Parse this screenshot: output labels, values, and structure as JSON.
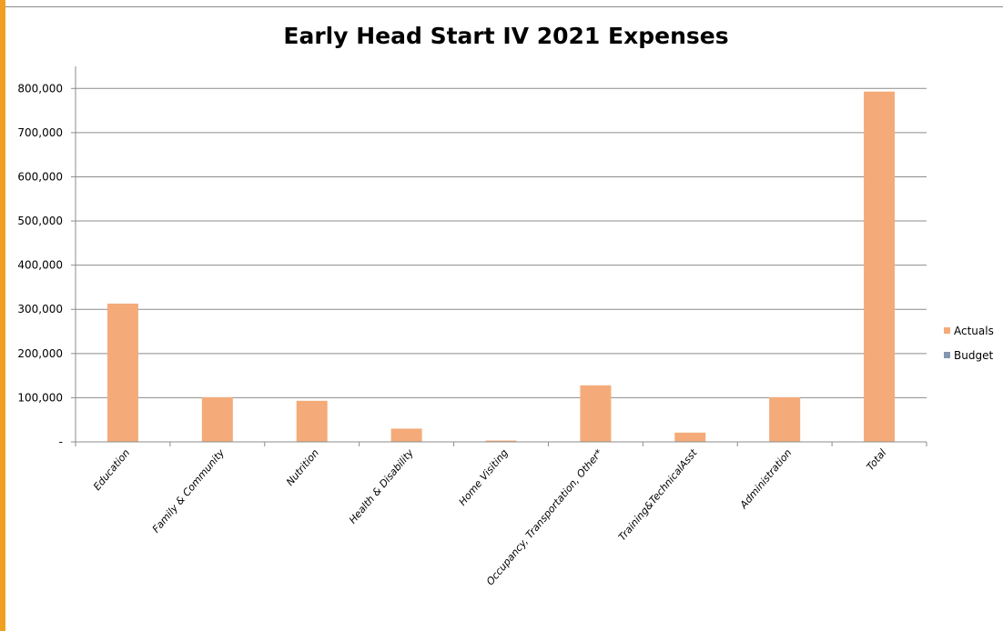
{
  "chart_data": {
    "type": "bar",
    "title": "Early Head Start IV 2021 Expenses",
    "xlabel": "",
    "ylabel": "",
    "ylim": [
      0,
      850000
    ],
    "y_ticks": [
      0,
      100000,
      200000,
      300000,
      400000,
      500000,
      600000,
      700000,
      800000
    ],
    "y_tick_labels": [
      "-",
      "100,000",
      "200,000",
      "300,000",
      "400,000",
      "500,000",
      "600,000",
      "700,000",
      "800,000"
    ],
    "categories": [
      "Education",
      "Family & Community",
      "Nutrition",
      "Health & Disability",
      "Home Visiting",
      "Occupancy, Transportation, Other*",
      "Training&TechnicalAsst",
      "Administration",
      "Total"
    ],
    "series": [
      {
        "name": "Actuals",
        "color": "#f4ab79",
        "values": [
          313000,
          101000,
          93000,
          30000,
          3000,
          128000,
          21000,
          101000,
          793000
        ]
      },
      {
        "name": "Budget",
        "color": "#8496b0",
        "values": [
          0,
          0,
          0,
          0,
          0,
          0,
          0,
          0,
          0
        ]
      }
    ],
    "grid": true,
    "legend_position": "right"
  }
}
